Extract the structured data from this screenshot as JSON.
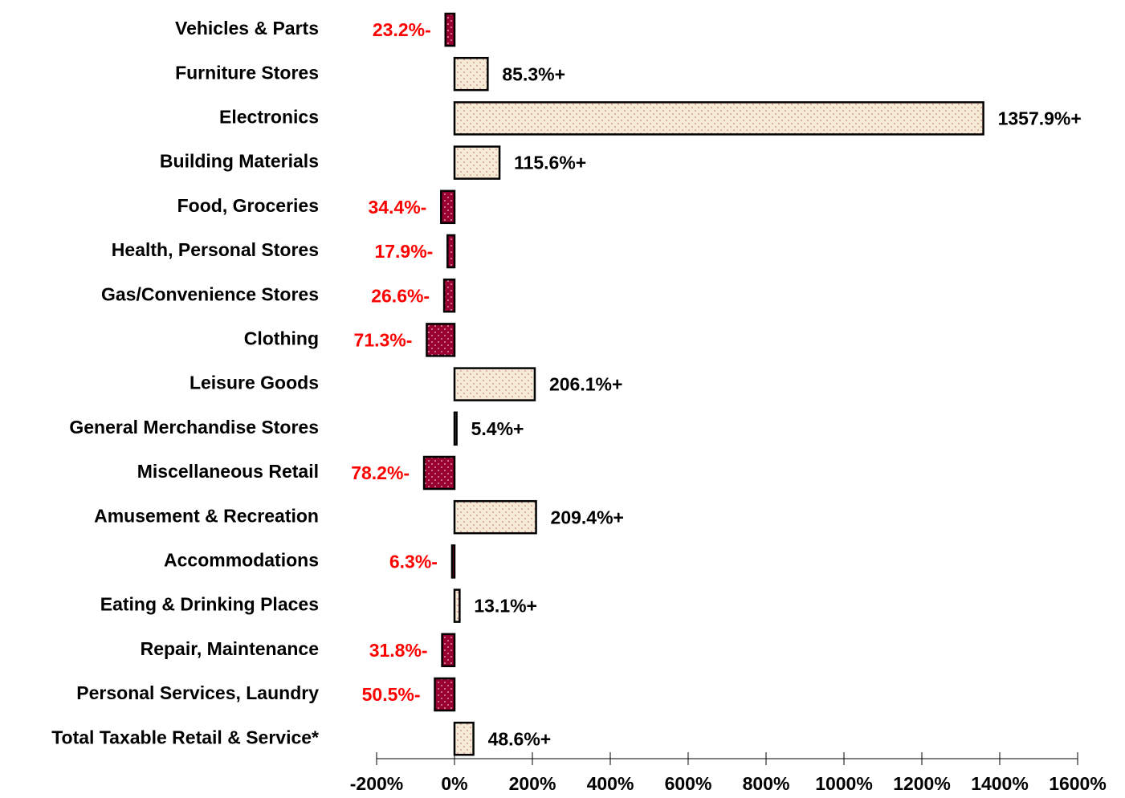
{
  "chart_data": {
    "type": "hbar",
    "categories": [
      "Vehicles & Parts",
      "Furniture Stores",
      "Electronics",
      "Building Materials",
      "Food, Groceries",
      "Health, Personal Stores",
      "Gas/Convenience Stores",
      "Clothing",
      "Leisure Goods",
      "General Merchandise Stores",
      "Miscellaneous Retail",
      "Amusement & Recreation",
      "Accommodations",
      "Eating & Drinking Places",
      "Repair, Maintenance",
      "Personal Services, Laundry",
      "Total Taxable Retail & Service*"
    ],
    "values": [
      -23.2,
      85.3,
      1357.9,
      115.6,
      -34.4,
      -17.9,
      -26.6,
      -71.3,
      206.1,
      5.4,
      -78.2,
      209.4,
      -6.3,
      13.1,
      -31.8,
      -50.5,
      48.6
    ],
    "value_labels": [
      "23.2%-",
      "85.3%+",
      "1357.9%+",
      "115.6%+",
      "34.4%-",
      "17.9%-",
      "26.6%-",
      "71.3%-",
      "206.1%+",
      "5.4%+",
      "78.2%-",
      "209.4%+",
      "6.3%-",
      "13.1%+",
      "31.8%-",
      "50.5%-",
      "48.6%+"
    ],
    "positive_color": "#f4ebd6",
    "negative_color": "#99002f",
    "positive_label_color": "#000000",
    "negative_label_color": "#ff0000",
    "xlim": [
      -200,
      1600
    ],
    "xticks": [
      {
        "value": -200,
        "label": "-200%"
      },
      {
        "value": 0,
        "label": "0%"
      },
      {
        "value": 200,
        "label": "200%"
      },
      {
        "value": 400,
        "label": "400%"
      },
      {
        "value": 600,
        "label": "600%"
      },
      {
        "value": 800,
        "label": "800%"
      },
      {
        "value": 1000,
        "label": "1000%"
      },
      {
        "value": 1200,
        "label": "1200%"
      },
      {
        "value": 1400,
        "label": "1400%"
      },
      {
        "value": 1600,
        "label": "1600%"
      }
    ]
  }
}
